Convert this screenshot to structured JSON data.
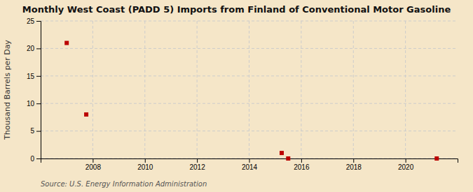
{
  "chart_data": {
    "type": "scatter",
    "title": "Monthly West Coast (PADD 5) Imports from Finland of Conventional Motor Gasoline",
    "ylabel": "Thousand Barrels per Day",
    "annotations": [
      "Source: U.S. Energy Information Administration"
    ],
    "x": [
      2007.0,
      2007.75,
      2015.25,
      2015.5,
      2021.2
    ],
    "values": [
      21.0,
      8.0,
      1.0,
      0.0,
      0.0
    ],
    "color": "#bb0000",
    "marker": "square",
    "xlim": [
      2006.0,
      2022.0
    ],
    "ylim": [
      0,
      25
    ],
    "xticks": [
      2008,
      2010,
      2012,
      2014,
      2016,
      2018,
      2020
    ],
    "yticks": [
      0,
      5,
      10,
      15,
      20,
      25
    ],
    "grid": true
  }
}
